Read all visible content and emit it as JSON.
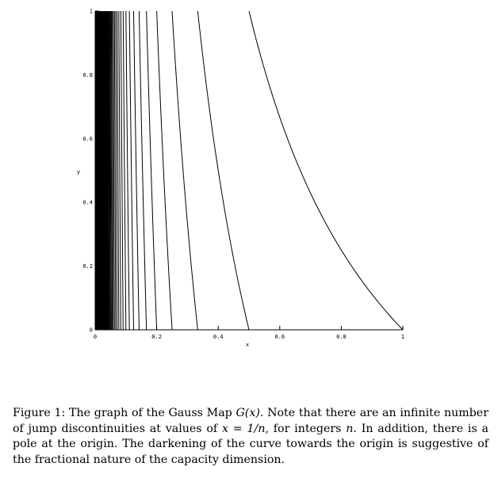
{
  "chart_data": {
    "type": "line",
    "title": "",
    "xlabel": "x",
    "ylabel": "y",
    "xlim": [
      0,
      1
    ],
    "ylim": [
      0,
      1
    ],
    "x_ticks": [
      {
        "value": 0,
        "label": "0"
      },
      {
        "value": 0.2,
        "label": "0.2"
      },
      {
        "value": 0.4,
        "label": "0.4"
      },
      {
        "value": 0.6,
        "label": "0.6"
      },
      {
        "value": 0.8,
        "label": "0.8"
      },
      {
        "value": 1,
        "label": "1"
      }
    ],
    "y_ticks": [
      {
        "value": 0,
        "label": "0"
      },
      {
        "value": 0.2,
        "label": "0.2"
      },
      {
        "value": 0.4,
        "label": "0.4"
      },
      {
        "value": 0.6,
        "label": "0.6"
      },
      {
        "value": 0.8,
        "label": "0.8"
      },
      {
        "value": 1,
        "label": "1"
      }
    ],
    "function": "G(x) = 1/x - floor(1/x)",
    "branches": 200,
    "grid": false,
    "legend": "none"
  },
  "caption": {
    "prefix": "Figure 1: The graph of the Gauss Map ",
    "map_symbol": "G(x)",
    "mid1": ". Note that there are an infinite number of jump discontinuities at values of ",
    "x_equation": "x = 1/n",
    "mid2": ", for integers ",
    "n_symbol": "n",
    "suffix": ". In addition, there is a pole at the origin. The darkening of the curve towards the origin is suggestive of the fractional nature of the capacity dimension."
  }
}
